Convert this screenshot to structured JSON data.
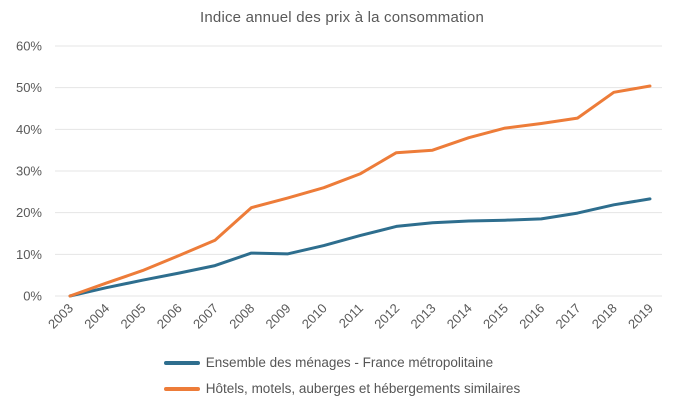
{
  "chart_data": {
    "type": "line",
    "title": "Indice annuel des prix à la consommation",
    "x": [
      2003,
      2004,
      2005,
      2006,
      2007,
      2008,
      2009,
      2010,
      2011,
      2012,
      2013,
      2014,
      2015,
      2016,
      2017,
      2018,
      2019
    ],
    "series": [
      {
        "name": "Ensemble des ménages - France métropolitaine",
        "color": "#2E6E8E",
        "values": [
          0,
          2.0,
          3.8,
          5.5,
          7.3,
          10.3,
          10.1,
          12.1,
          14.5,
          16.7,
          17.6,
          18.0,
          18.2,
          18.5,
          19.9,
          21.9,
          23.3
        ]
      },
      {
        "name": "Hôtels, motels, auberges et hébergements similaires",
        "color": "#ED7C39",
        "values": [
          0,
          3.1,
          6.1,
          9.7,
          13.4,
          21.2,
          23.5,
          26.0,
          29.3,
          34.4,
          35.0,
          38.0,
          40.3,
          41.4,
          42.7,
          48.9,
          50.4
        ]
      }
    ],
    "ylim": [
      0,
      60
    ],
    "yticks": [
      0,
      10,
      20,
      30,
      40,
      50,
      60
    ],
    "ytick_suffix": "%",
    "grid": "horizontal",
    "legend_position": "bottom",
    "x_label_rotation": -45
  }
}
